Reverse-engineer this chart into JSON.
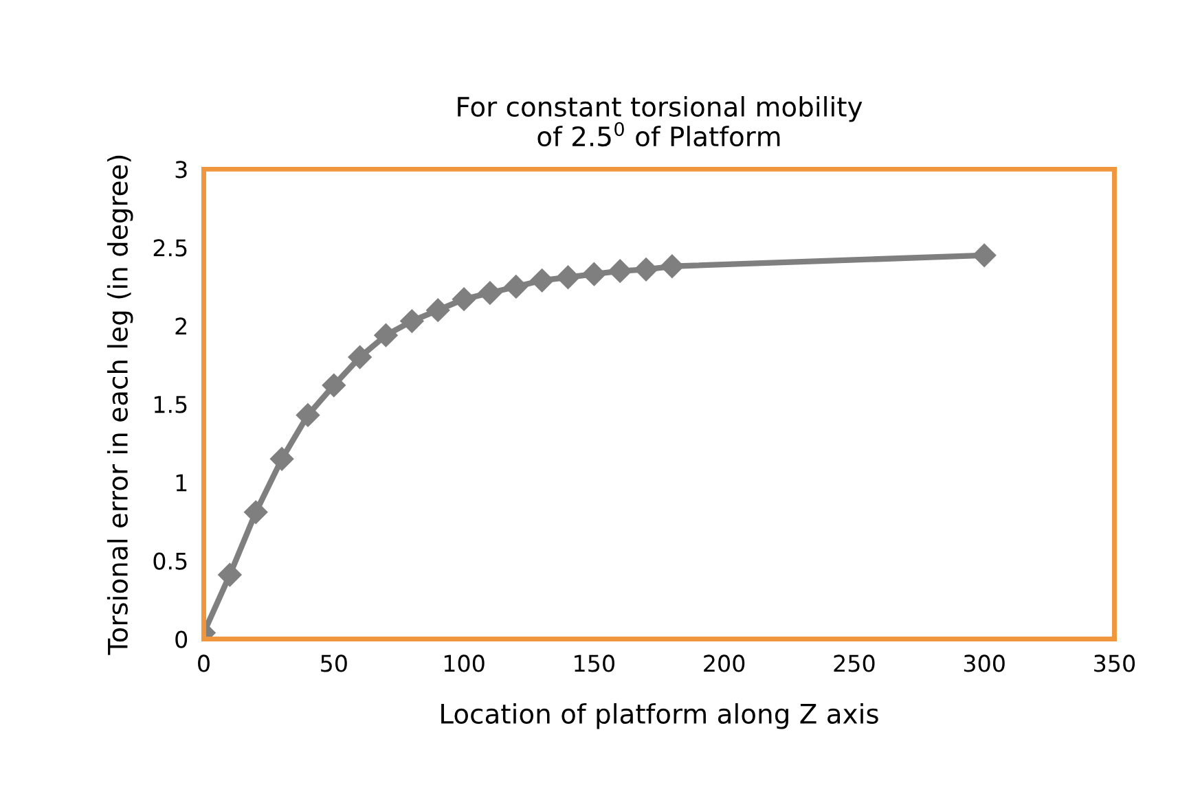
{
  "chart_data": {
    "type": "line",
    "title": "For constant torsional mobility\nof 2.5$^{0}$ of Platform",
    "xlabel": "Location of platform along Z axis",
    "ylabel": "Torsional error in each leg (in degree)",
    "x": [
      0,
      10,
      20,
      30,
      40,
      50,
      60,
      70,
      80,
      90,
      100,
      110,
      120,
      130,
      140,
      150,
      160,
      170,
      180,
      300
    ],
    "series": [
      {
        "color": "#7f7f7f",
        "values": [
          0.04,
          0.41,
          0.81,
          1.15,
          1.43,
          1.62,
          1.8,
          1.94,
          2.03,
          2.1,
          2.17,
          2.21,
          2.25,
          2.29,
          2.31,
          2.33,
          2.35,
          2.36,
          2.38,
          2.45
        ]
      }
    ],
    "xlim": [
      0,
      350
    ],
    "xticks": [
      0,
      50,
      100,
      150,
      200,
      250,
      300,
      350
    ],
    "ylim": [
      0,
      3
    ],
    "yticks": [
      0,
      0.5,
      1,
      1.5,
      2,
      2.5,
      3
    ],
    "marker": "diamond",
    "line_style": "solid",
    "grid": false,
    "legend": false
  }
}
